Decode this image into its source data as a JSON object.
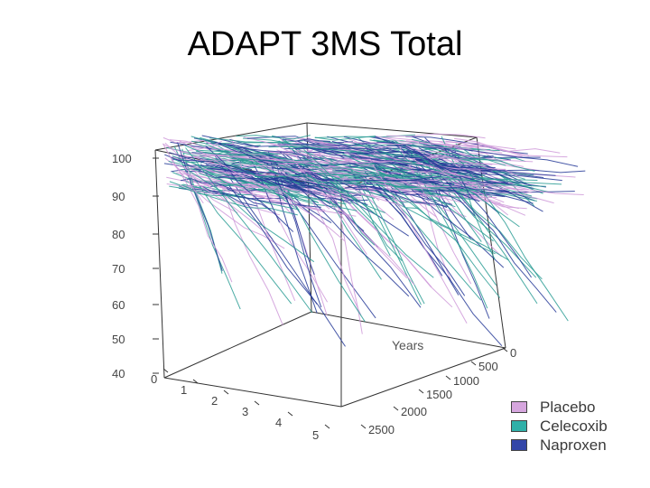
{
  "title": "ADAPT 3MS Total",
  "chart_data": {
    "type": "line-3d",
    "title": "ADAPT 3MS Total",
    "z_axis": {
      "ticks": [
        "100",
        "90",
        "80",
        "70",
        "60",
        "50",
        "40"
      ],
      "range": [
        40,
        100
      ]
    },
    "x_axis": {
      "ticks": [
        "0",
        "1",
        "2",
        "3",
        "4",
        "5"
      ],
      "range": [
        0,
        5
      ]
    },
    "y_axis": {
      "label": "Years",
      "ticks": [
        "0",
        "500",
        "1000",
        "1500",
        "2000",
        "2500"
      ],
      "range": [
        0,
        2500
      ]
    },
    "legend_position": "bottom-right",
    "series": [
      {
        "name": "Placebo",
        "color": "#d6a6de",
        "line_color": "#cf9ad9"
      },
      {
        "name": "Celecoxib",
        "color": "#2fb0a8",
        "line_color": "#2a9c94"
      },
      {
        "name": "Naproxen",
        "color": "#3346a8",
        "line_color": "#263a98"
      }
    ]
  }
}
